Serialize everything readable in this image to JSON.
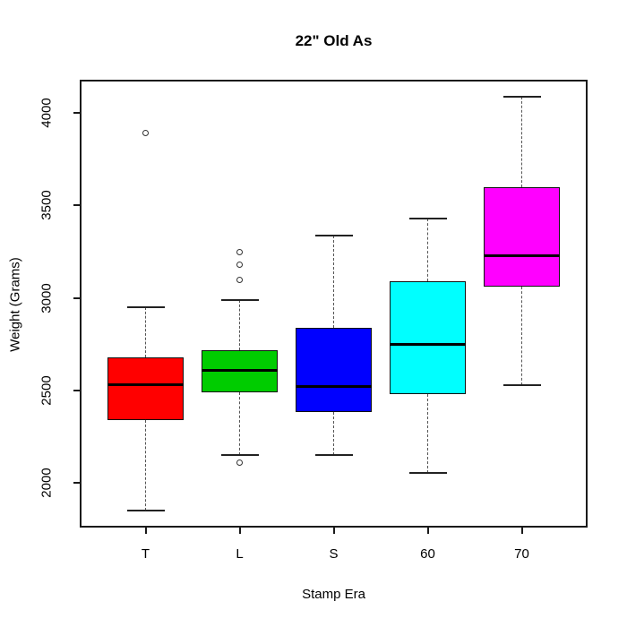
{
  "chart_data": {
    "type": "boxplot",
    "title": "22\" Old As",
    "xlabel": "Stamp Era",
    "ylabel": "Weight (Grams)",
    "ylim": [
      1760,
      4180
    ],
    "yticks": [
      2000,
      2500,
      3000,
      3500,
      4000
    ],
    "grid": false,
    "legend": "none",
    "categories": [
      "T",
      "L",
      "S",
      "60",
      "70"
    ],
    "series": [
      {
        "category": "T",
        "color": "#ff0000",
        "whisker_low": 1850,
        "q1": 2340,
        "median": 2530,
        "q3": 2680,
        "whisker_high": 2950,
        "outliers": [
          3890
        ]
      },
      {
        "category": "L",
        "color": "#00cc00",
        "whisker_low": 2150,
        "q1": 2490,
        "median": 2610,
        "q3": 2720,
        "whisker_high": 2990,
        "outliers": [
          2110,
          3100,
          3180,
          3250
        ]
      },
      {
        "category": "S",
        "color": "#0000ff",
        "whisker_low": 2150,
        "q1": 2385,
        "median": 2520,
        "q3": 2840,
        "whisker_high": 3340,
        "outliers": []
      },
      {
        "category": "60",
        "color": "#00ffff",
        "whisker_low": 2055,
        "q1": 2480,
        "median": 2750,
        "q3": 3090,
        "whisker_high": 3430,
        "outliers": []
      },
      {
        "category": "70",
        "color": "#ff00ff",
        "whisker_low": 2530,
        "q1": 3060,
        "median": 3230,
        "q3": 3600,
        "whisker_high": 4090,
        "outliers": []
      }
    ]
  }
}
